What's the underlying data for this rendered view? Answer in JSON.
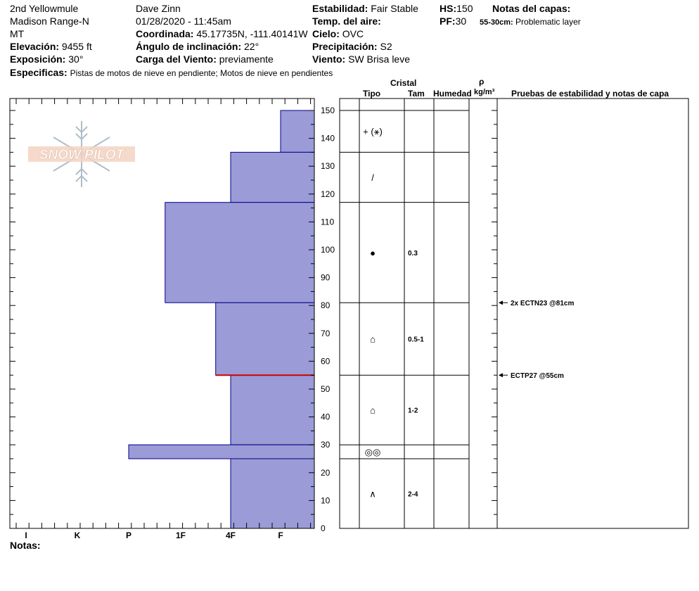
{
  "header": {
    "location": "2nd Yellowmule",
    "range": "Madison Range-N",
    "state": "MT",
    "elevation_label": "Elevación:",
    "elevation_value": "9455 ft",
    "exposure_label": "Exposición:",
    "exposure_value": "30°",
    "observer": "Dave Zinn",
    "datetime": "01/28/2020 - 11:45am",
    "coord_label": "Coordinada:",
    "coord_value": "45.17735N, -111.40141W",
    "slope_label": "Ángulo de inclinación:",
    "slope_value": "22°",
    "wind_load_label": "Carga del Viento:",
    "wind_load_value": "previamente",
    "stability_label": "Estabilidad:",
    "stability_value": "Fair Stable",
    "air_temp_label": "Temp. del aire:",
    "air_temp_value": "",
    "sky_label": "Cielo:",
    "sky_value": "OVC",
    "precip_label": "Precipitación:",
    "precip_value": "S2",
    "wind_label": "Viento:",
    "wind_value": "SW Brisa leve",
    "hs_label": "HS:",
    "hs_value": "150",
    "pf_label": "PF:",
    "pf_value": "30",
    "layer_notes_label": "Notas del capas:",
    "layer_notes_range": "55-30cm:",
    "layer_notes_text": "Problematic layer",
    "specifics_label": "Especificas:",
    "specifics_text": "Pistas de motos de nieve en pendiente;  Motos de nieve en pendientes"
  },
  "columns": {
    "crystal": "Cristal",
    "type": "Tipo",
    "size": "Tam",
    "moisture": "Humedad",
    "rho": "ρ",
    "density_unit": "kg/m³",
    "tests": "Pruebas de estabilidad y notas de capa"
  },
  "logo_text": "SNOW PILOT",
  "notes_label": "Notas:",
  "colors": {
    "bar_fill": "#9b9bd7",
    "bar_stroke": "#00008b",
    "layer_line": "#cc0000"
  },
  "chart_data": {
    "type": "bar",
    "orientation": "horizontal",
    "y_range": [
      0,
      150
    ],
    "y_ticks": [
      0,
      10,
      20,
      30,
      40,
      50,
      60,
      70,
      80,
      90,
      100,
      110,
      120,
      130,
      140,
      150
    ],
    "hardness_scale": [
      "I",
      "K",
      "P",
      "1F",
      "4F",
      "F"
    ],
    "layers": [
      {
        "bottom": 135,
        "top": 150,
        "hardness_index": 5.0,
        "crystal": "+ (⚹)",
        "size": ""
      },
      {
        "bottom": 117,
        "top": 135,
        "hardness_index": 4.0,
        "crystal": "/",
        "size": ""
      },
      {
        "bottom": 81,
        "top": 117,
        "hardness_index": 2.7,
        "crystal": "●",
        "size": "0.3"
      },
      {
        "bottom": 55,
        "top": 81,
        "hardness_index": 3.7,
        "crystal": "⌂",
        "size": "0.5-1"
      },
      {
        "bottom": 30,
        "top": 55,
        "hardness_index": 4.0,
        "crystal": "⌂",
        "size": "1-2"
      },
      {
        "bottom": 25,
        "top": 30,
        "hardness_index": 2.0,
        "crystal": "◎◎",
        "size": ""
      },
      {
        "bottom": 0,
        "top": 25,
        "hardness_index": 4.0,
        "crystal": "∧",
        "size": "2-4"
      }
    ],
    "highlight_depth": 55,
    "tests": [
      {
        "depth": 81,
        "text": "2x ECTN23 @81cm"
      },
      {
        "depth": 55,
        "text": "ECTP27 @55cm"
      }
    ]
  }
}
